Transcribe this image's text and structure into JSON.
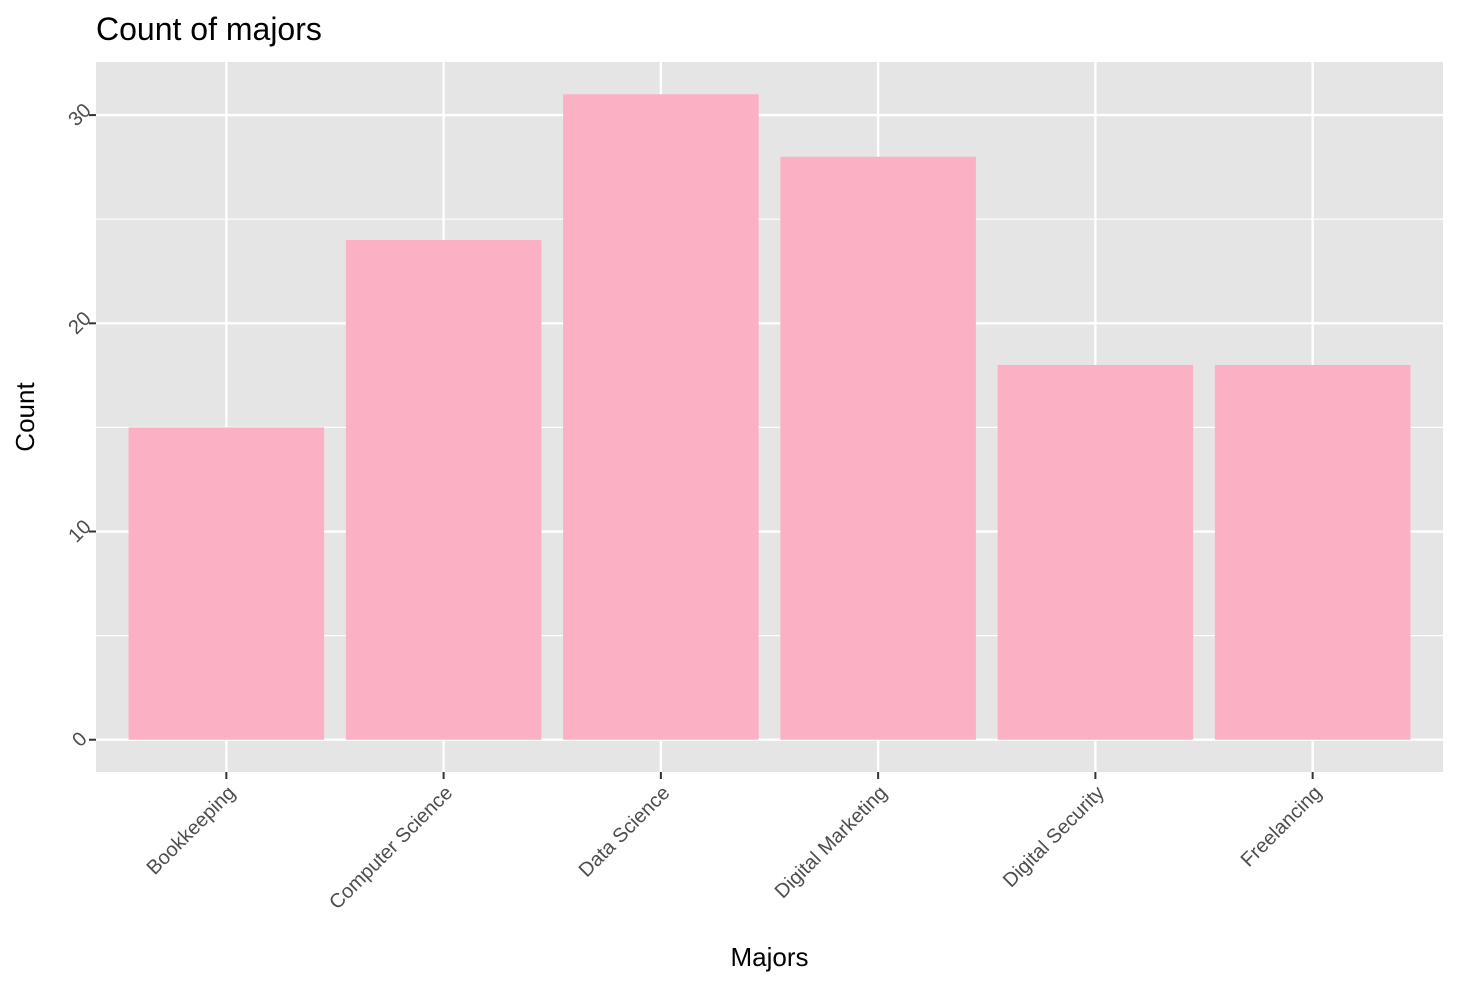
{
  "chart_data": {
    "type": "bar",
    "title": "Count of majors",
    "xlabel": "Majors",
    "ylabel": "Count",
    "categories": [
      "Bookkeeping",
      "Computer Science",
      "Data Science",
      "Digital Marketing",
      "Digital Security",
      "Freelancing"
    ],
    "values": [
      15,
      24,
      31,
      28,
      18,
      18
    ],
    "ylim": [
      -1.55,
      32.55
    ],
    "yticks": [
      "0",
      "10",
      "20",
      "30"
    ],
    "grid": true,
    "legend": "none",
    "colors": {
      "bar": "#fcb0c3",
      "panel": "#e5e5e5",
      "grid": "#ffffff",
      "tick_text": "#4d4d4d"
    }
  }
}
